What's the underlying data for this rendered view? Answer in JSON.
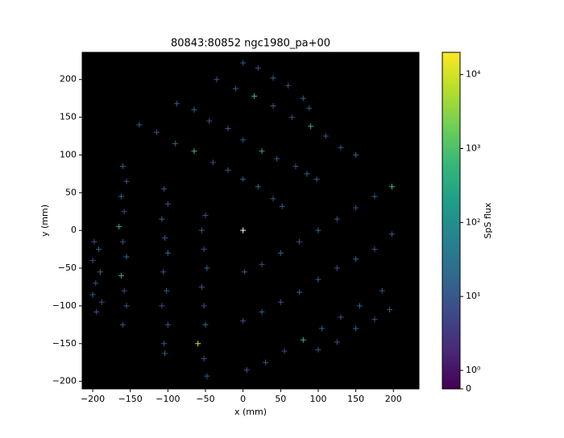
{
  "chart_data": {
    "type": "scatter",
    "title": "80843:80852 ngc1980_pa+00",
    "xlabel": "x (mm)",
    "ylabel": "y (mm)",
    "background": "#000000",
    "xlim": [
      -214,
      234
    ],
    "ylim": [
      -210,
      236
    ],
    "xticks": [
      {
        "value": -200,
        "label": "−200"
      },
      {
        "value": -150,
        "label": "−150"
      },
      {
        "value": -100,
        "label": "−100"
      },
      {
        "value": -50,
        "label": "−50"
      },
      0,
      50,
      100,
      150,
      200
    ],
    "yticks": [
      {
        "value": -200,
        "label": "−200"
      },
      {
        "value": -150,
        "label": "−150"
      },
      {
        "value": -100,
        "label": "−100"
      },
      {
        "value": -50,
        "label": "−50"
      },
      0,
      50,
      100,
      150,
      200
    ],
    "series": [
      {
        "x": [
          -198,
          -192,
          -200,
          -190,
          -196,
          -200,
          -188,
          -195,
          -160,
          -155,
          -162,
          -158,
          -165,
          -160,
          -155,
          -162,
          -158,
          -155,
          -160,
          -105,
          -100,
          -108,
          -104,
          -100,
          -106,
          -102,
          -108,
          -100,
          -105,
          -104,
          -50,
          -55,
          -52,
          -48,
          -55,
          -52,
          -50,
          -60,
          -52,
          -48,
          -138,
          -115,
          -90,
          -65,
          -40,
          -20,
          0,
          20,
          40,
          52,
          -88,
          -65,
          -45,
          -20,
          0,
          25,
          45,
          70,
          85,
          98,
          -35,
          -10,
          15,
          40,
          65,
          90,
          110,
          130,
          150,
          0,
          20,
          40,
          60,
          80,
          88,
          2,
          25,
          50,
          75,
          100,
          125,
          150,
          175,
          198,
          0,
          25,
          50,
          75,
          100,
          125,
          150,
          175,
          198,
          5,
          30,
          55,
          80,
          105,
          130,
          155,
          185,
          100,
          125,
          150,
          175,
          195
        ],
        "values": [
          -15,
          -25,
          -40,
          -55,
          -70,
          -85,
          -95,
          -108,
          85,
          65,
          45,
          25,
          5,
          -15,
          -35,
          -60,
          -80,
          -100,
          -125,
          55,
          35,
          15,
          -10,
          -30,
          -55,
          -80,
          -100,
          -125,
          -150,
          -163,
          20,
          0,
          -25,
          -50,
          -75,
          -100,
          -125,
          -150,
          -170,
          -193,
          140,
          130,
          115,
          105,
          90,
          80,
          68,
          58,
          42,
          32,
          168,
          160,
          145,
          135,
          120,
          105,
          95,
          85,
          75,
          68,
          200,
          188,
          178,
          165,
          150,
          138,
          125,
          110,
          100,
          222,
          215,
          202,
          192,
          175,
          162,
          -55,
          -45,
          -30,
          -15,
          0,
          15,
          30,
          45,
          58,
          -120,
          -108,
          -95,
          -82,
          -65,
          -50,
          -38,
          -25,
          -5,
          -185,
          -175,
          -160,
          -145,
          -130,
          -115,
          -100,
          -80,
          -158,
          -148,
          -130,
          -118,
          -105
        ],
        "color_values": [
          8,
          12,
          6,
          20,
          9,
          15,
          7,
          11,
          14,
          9,
          25,
          7,
          400,
          10,
          18,
          600,
          8,
          12,
          9,
          10,
          7,
          16,
          9,
          22,
          8,
          13,
          6,
          11,
          9,
          14,
          9,
          12,
          7,
          18,
          10,
          8,
          20,
          12000,
          9,
          11,
          15,
          9,
          20,
          700,
          8,
          12,
          10,
          25,
          9,
          14,
          10,
          18,
          8,
          13,
          9,
          300,
          11,
          7,
          16,
          10,
          9,
          14,
          800,
          10,
          8,
          500,
          12,
          9,
          15,
          11,
          8,
          13,
          9,
          17,
          10,
          12,
          8,
          15,
          9,
          20,
          10,
          7,
          14,
          900,
          10,
          13,
          8,
          19,
          11,
          9,
          16,
          8,
          12,
          9,
          14,
          8,
          600,
          12,
          9,
          17,
          10,
          11,
          8,
          15,
          9,
          13
        ]
      },
      {
        "x": [
          0
        ],
        "values": [
          0
        ],
        "color": "#ffffff"
      }
    ],
    "colorbar": {
      "label": "SpS flux",
      "cmap": "viridis",
      "scale": "symlog",
      "linthresh": 1,
      "linscale": 0.25,
      "lim": [
        0,
        20000
      ],
      "ticks": [
        0,
        {
          "value": 1,
          "label": "10⁰"
        },
        {
          "value": 10,
          "label": "10¹"
        },
        {
          "value": 100,
          "label": "10²"
        },
        {
          "value": 1000,
          "label": "10³"
        },
        {
          "value": 10000,
          "label": "10⁴"
        }
      ]
    }
  }
}
